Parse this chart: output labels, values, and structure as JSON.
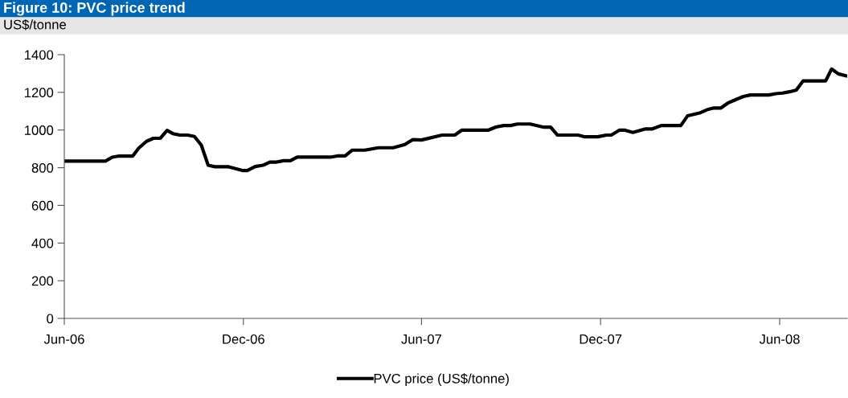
{
  "chart_data": {
    "type": "line",
    "title": "Figure 10: PVC price trend",
    "ylabel": "US$/tonne",
    "series": [
      {
        "name": "PVC price (US$/tonne)",
        "color": "#000000",
        "x": [
          "2006-06-01",
          "2006-07-13",
          "2006-07-20",
          "2006-07-27",
          "2006-08-10",
          "2006-08-16",
          "2006-08-24",
          "2006-08-31",
          "2006-09-07",
          "2006-09-14",
          "2006-09-20",
          "2006-09-27",
          "2006-10-05",
          "2006-10-12",
          "2006-10-19",
          "2006-10-26",
          "2006-11-02",
          "2006-11-16",
          "2006-11-23",
          "2006-11-30",
          "2006-12-05",
          "2006-12-13",
          "2006-12-21",
          "2006-12-28",
          "2007-01-04",
          "2007-01-11",
          "2007-01-18",
          "2007-01-25",
          "2007-02-28",
          "2007-03-08",
          "2007-03-15",
          "2007-03-22",
          "2007-04-04",
          "2007-04-18",
          "2007-05-03",
          "2007-05-15",
          "2007-05-23",
          "2007-06-01",
          "2007-06-22",
          "2007-07-05",
          "2007-07-12",
          "2007-08-08",
          "2007-08-16",
          "2007-08-24",
          "2007-08-31",
          "2007-09-07",
          "2007-09-20",
          "2007-10-04",
          "2007-10-11",
          "2007-10-18",
          "2007-11-08",
          "2007-11-15",
          "2007-11-28",
          "2007-12-07",
          "2007-12-12",
          "2007-12-20",
          "2007-12-26",
          "2008-01-03",
          "2008-01-16",
          "2008-01-23",
          "2008-02-01",
          "2008-02-21",
          "2008-02-28",
          "2008-03-12",
          "2008-03-20",
          "2008-03-26",
          "2008-04-02",
          "2008-04-09",
          "2008-04-17",
          "2008-04-25",
          "2008-05-02",
          "2008-05-21",
          "2008-05-28",
          "2008-06-04",
          "2008-06-11",
          "2008-06-18",
          "2008-06-25",
          "2008-07-18",
          "2008-07-24",
          "2008-07-31",
          "2008-08-08"
        ],
        "values": [
          835,
          835,
          856,
          862,
          862,
          904,
          940,
          956,
          956,
          998,
          981,
          973,
          973,
          966,
          920,
          813,
          805,
          805,
          795,
          785,
          785,
          806,
          813,
          830,
          830,
          837,
          837,
          856,
          856,
          863,
          863,
          893,
          893,
          906,
          906,
          923,
          949,
          947,
          973,
          973,
          999,
          999,
          1016,
          1024,
          1024,
          1032,
          1032,
          1015,
          1015,
          973,
          973,
          964,
          964,
          973,
          973,
          999,
          999,
          987,
          1006,
          1006,
          1024,
          1024,
          1076,
          1092,
          1110,
          1117,
          1117,
          1143,
          1161,
          1178,
          1186,
          1186,
          1193,
          1196,
          1203,
          1212,
          1261,
          1261,
          1324,
          1298,
          1288
        ]
      }
    ],
    "xlim": [
      "2006-06-01",
      "2008-08-09"
    ],
    "xticks": [
      {
        "value": "2006-06-01",
        "label": "Jun-06"
      },
      {
        "value": "2006-12-01",
        "label": "Dec-06"
      },
      {
        "value": "2007-06-01",
        "label": "Jun-07"
      },
      {
        "value": "2007-12-01",
        "label": "Dec-07"
      },
      {
        "value": "2008-06-01",
        "label": "Jun-08"
      }
    ],
    "ylim": [
      0,
      1400
    ],
    "yticks": [
      0,
      200,
      400,
      600,
      800,
      1000,
      1200,
      1400
    ],
    "legend": "bottom",
    "line_style": "solid",
    "marker": "none"
  }
}
